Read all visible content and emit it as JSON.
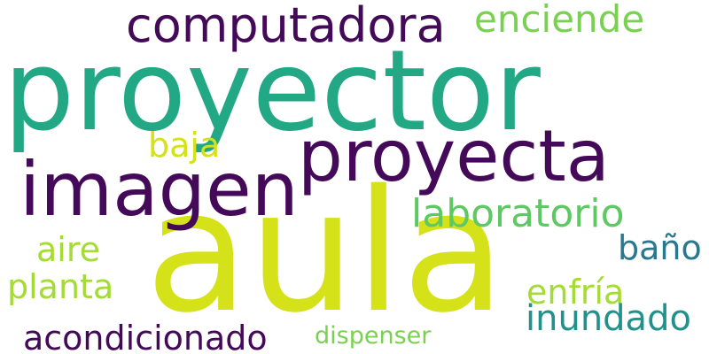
{
  "words": {
    "proyector": {
      "text": "proyector",
      "color": "#22a884"
    },
    "aula": {
      "text": "aula",
      "color": "#d5e21a"
    },
    "proyecta": {
      "text": "proyecta",
      "color": "#440a59"
    },
    "imagen": {
      "text": "imagen",
      "color": "#440a59"
    },
    "computadora": {
      "text": "computadora",
      "color": "#440a59"
    },
    "enciende": {
      "text": "enciende",
      "color": "#7ad151"
    },
    "laboratorio": {
      "text": "laboratorio",
      "color": "#5ec962"
    },
    "baja": {
      "text": "baja",
      "color": "#d5e21a"
    },
    "aire": {
      "text": "aire",
      "color": "#a5db36"
    },
    "planta": {
      "text": "planta",
      "color": "#a5db36"
    },
    "bano": {
      "text": "baño",
      "color": "#2a788e"
    },
    "enfria": {
      "text": "enfría",
      "color": "#a5db36"
    },
    "inundado": {
      "text": "inundado",
      "color": "#21918c"
    },
    "acondicionado": {
      "text": "acondicionado",
      "color": "#440a59"
    },
    "dispenser": {
      "text": "dispenser",
      "color": "#7ad151"
    }
  }
}
